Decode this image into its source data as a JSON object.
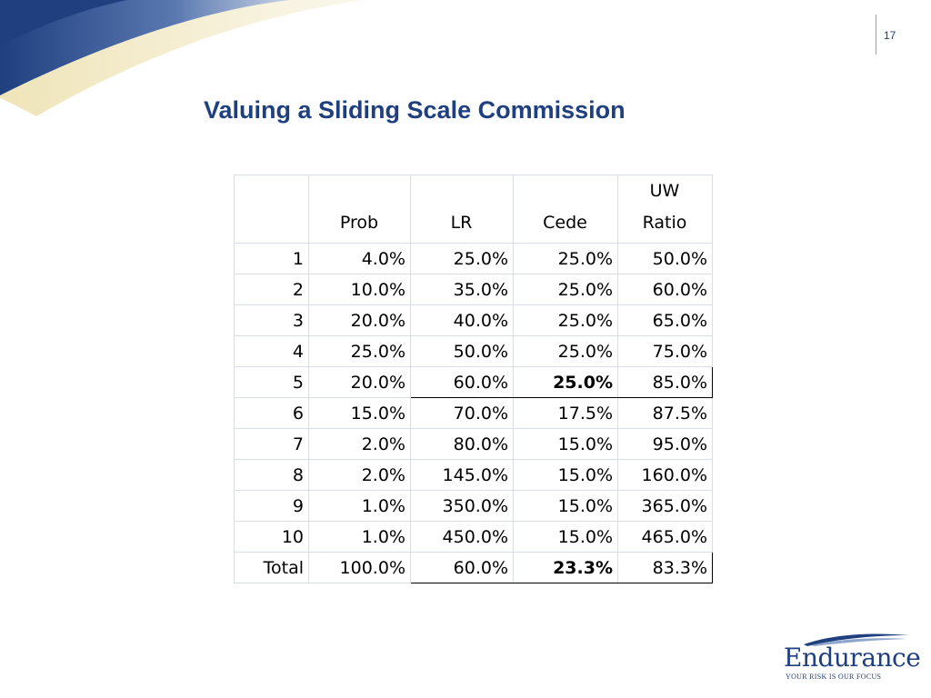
{
  "slide": {
    "page_number": "17",
    "title": "Valuing a Sliding Scale Commission"
  },
  "table": {
    "headers": [
      "",
      "Prob",
      "LR",
      "Cede",
      "UW\nRatio"
    ],
    "header_uw_top": "UW",
    "header_uw_bottom": "Ratio",
    "rows": [
      [
        "1",
        "4.0%",
        "25.0%",
        "25.0%",
        "50.0%"
      ],
      [
        "2",
        "10.0%",
        "35.0%",
        "25.0%",
        "60.0%"
      ],
      [
        "3",
        "20.0%",
        "40.0%",
        "25.0%",
        "65.0%"
      ],
      [
        "4",
        "25.0%",
        "50.0%",
        "25.0%",
        "75.0%"
      ],
      [
        "5",
        "20.0%",
        "60.0%",
        "25.0%",
        "85.0%"
      ],
      [
        "6",
        "15.0%",
        "70.0%",
        "17.5%",
        "87.5%"
      ],
      [
        "7",
        "2.0%",
        "80.0%",
        "15.0%",
        "95.0%"
      ],
      [
        "8",
        "2.0%",
        "145.0%",
        "15.0%",
        "160.0%"
      ],
      [
        "9",
        "1.0%",
        "350.0%",
        "15.0%",
        "365.0%"
      ],
      [
        "10",
        "1.0%",
        "450.0%",
        "15.0%",
        "465.0%"
      ]
    ],
    "total": [
      "Total",
      "100.0%",
      "60.0%",
      "23.3%",
      "83.3%"
    ]
  },
  "logo": {
    "name": "Endurance",
    "tagline": "YOUR RISK IS OUR FOCUS"
  },
  "colors": {
    "brand_navy": "#1f3f7f",
    "swoosh_gold": "#f3ecc8",
    "divider_gold": "#c8a040"
  }
}
